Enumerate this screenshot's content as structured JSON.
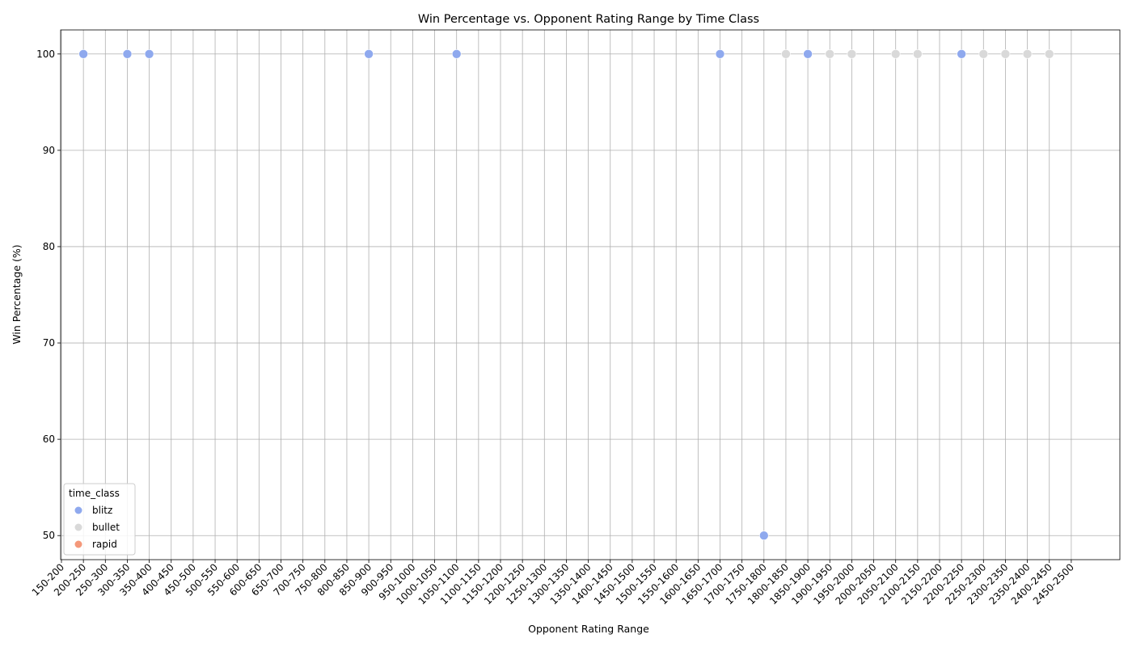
{
  "chart_data": {
    "type": "scatter",
    "title": "Win Percentage vs. Opponent Rating Range by Time Class",
    "xlabel": "Opponent Rating Range",
    "ylabel": "Win Percentage (%)",
    "categories": [
      "150-200",
      "200-250",
      "250-300",
      "300-350",
      "350-400",
      "400-450",
      "450-500",
      "500-550",
      "550-600",
      "600-650",
      "650-700",
      "700-750",
      "750-800",
      "800-850",
      "850-900",
      "900-950",
      "950-1000",
      "1000-1050",
      "1050-1100",
      "1100-1150",
      "1150-1200",
      "1200-1250",
      "1250-1300",
      "1300-1350",
      "1350-1400",
      "1400-1450",
      "1450-1500",
      "1500-1550",
      "1550-1600",
      "1600-1650",
      "1650-1700",
      "1700-1750",
      "1750-1800",
      "1800-1850",
      "1850-1900",
      "1900-1950",
      "1950-2000",
      "2000-2050",
      "2050-2100",
      "2100-2150",
      "2150-2200",
      "2200-2250",
      "2250-2300",
      "2300-2350",
      "2350-2400",
      "2400-2450",
      "2450-2500"
    ],
    "yticks": [
      50,
      60,
      70,
      80,
      90,
      100
    ],
    "ylim": [
      47.5,
      102.5
    ],
    "grid": true,
    "legend": {
      "title": "time_class",
      "placement": "lower-left"
    },
    "series": [
      {
        "name": "blitz",
        "color": "#8fa9ee",
        "points": [
          {
            "x": "200-250",
            "y": 100
          },
          {
            "x": "300-350",
            "y": 100
          },
          {
            "x": "350-400",
            "y": 100
          },
          {
            "x": "850-900",
            "y": 100
          },
          {
            "x": "1050-1100",
            "y": 100
          },
          {
            "x": "1650-1700",
            "y": 100
          },
          {
            "x": "1750-1800",
            "y": 50
          },
          {
            "x": "1850-1900",
            "y": 100
          },
          {
            "x": "2200-2250",
            "y": 100
          }
        ]
      },
      {
        "name": "bullet",
        "color": "#d9d9d9",
        "points": [
          {
            "x": "1800-1850",
            "y": 100
          },
          {
            "x": "1900-1950",
            "y": 100
          },
          {
            "x": "1950-2000",
            "y": 100
          },
          {
            "x": "2050-2100",
            "y": 100
          },
          {
            "x": "2100-2150",
            "y": 100
          },
          {
            "x": "2250-2300",
            "y": 100
          },
          {
            "x": "2300-2350",
            "y": 100
          },
          {
            "x": "2350-2400",
            "y": 100
          },
          {
            "x": "2400-2450",
            "y": 100
          }
        ]
      },
      {
        "name": "rapid",
        "color": "#f4987a",
        "points": []
      }
    ]
  }
}
